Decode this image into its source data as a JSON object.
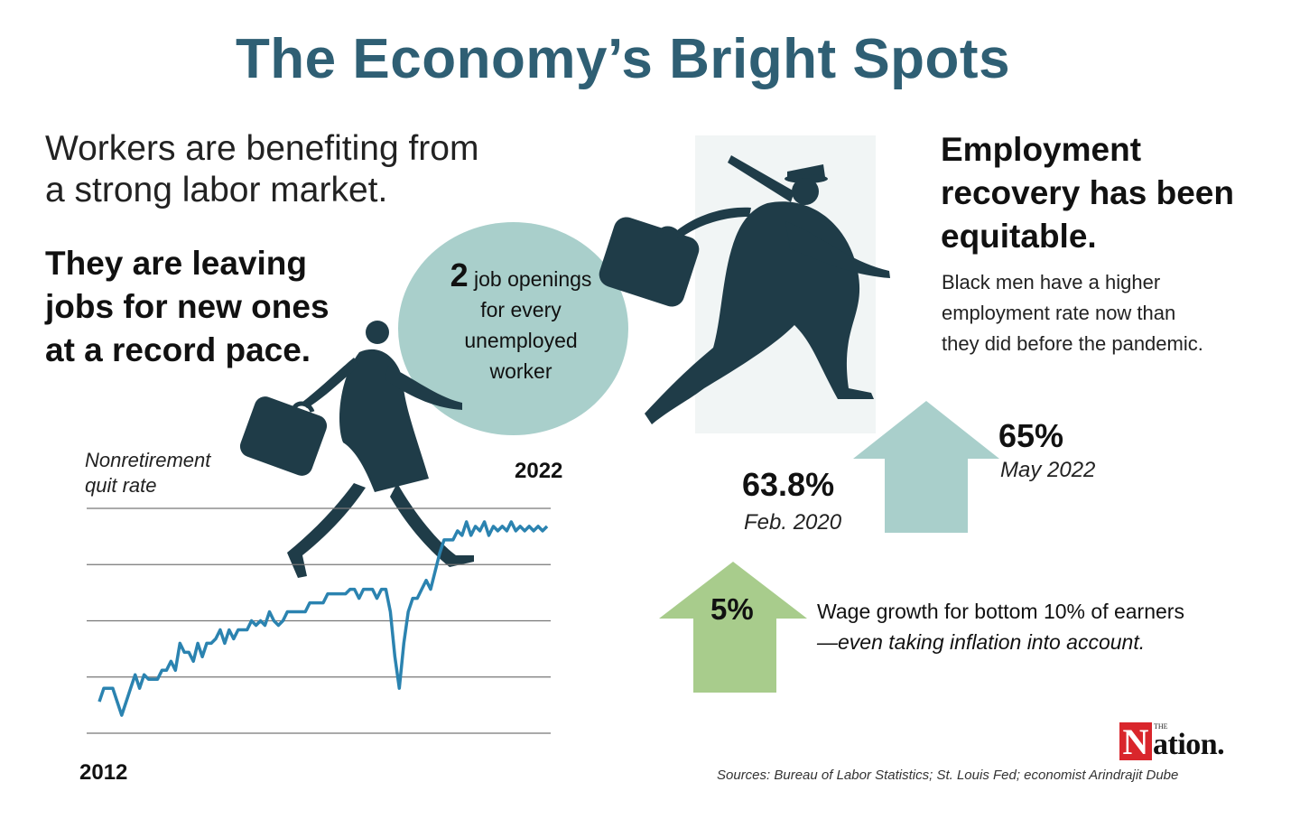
{
  "title": "The Economy’s Bright Spots",
  "subtitle_lines": [
    "Workers are benefiting from",
    "a strong labor market."
  ],
  "left_headline_lines": [
    "They are leaving",
    "jobs for new ones",
    "at a record pace."
  ],
  "bubble": {
    "number": "2",
    "first_line": "job openings",
    "lines": [
      "for every",
      "unemployed",
      "worker"
    ]
  },
  "right_headline_lines": [
    "Employment",
    "recovery has been",
    "equitable."
  ],
  "right_body_lines": [
    "Black men have a higher",
    "employment rate now than",
    "they did before the pandemic."
  ],
  "colors": {
    "title": "#2f5f74",
    "silhouette": "#1f3c48",
    "bubble": "#a9cfcb",
    "teal_arrow": "#a9cfcb",
    "green_arrow": "#a8cc8c",
    "line": "#2b83b0",
    "gridline": "#777777",
    "logo_red": "#d9262c"
  },
  "chart_data": {
    "type": "line",
    "title": "Nonretirement quit rate",
    "x_start_label": "2012",
    "x_end_label": "2022",
    "x": [
      0,
      1,
      2,
      3,
      4,
      5,
      6,
      7,
      8,
      9,
      10,
      11,
      12,
      13,
      14,
      15,
      16,
      17,
      18,
      19,
      20,
      21,
      22,
      23,
      24,
      25,
      26,
      27,
      28,
      29,
      30,
      31,
      32,
      33,
      34,
      35,
      36,
      37,
      38,
      39,
      40,
      41,
      42,
      43,
      44,
      45,
      46,
      47,
      48,
      49,
      50,
      51,
      52,
      53,
      54,
      55,
      56,
      57,
      58,
      59,
      60,
      61,
      62,
      63,
      64,
      65,
      66,
      67,
      68,
      69,
      70,
      71,
      72,
      73,
      74,
      75,
      76,
      77,
      78,
      79,
      80,
      81,
      82,
      83,
      84,
      85,
      86,
      87,
      88,
      89,
      90,
      91,
      92,
      93,
      94,
      95,
      96,
      97,
      98,
      99,
      100
    ],
    "values": [
      0.3,
      0.6,
      0.6,
      0.6,
      0.3,
      0.0,
      0.3,
      0.6,
      0.9,
      0.6,
      0.9,
      0.8,
      0.8,
      0.8,
      1.0,
      1.0,
      1.2,
      1.0,
      1.6,
      1.4,
      1.4,
      1.2,
      1.6,
      1.3,
      1.6,
      1.6,
      1.7,
      1.9,
      1.6,
      1.9,
      1.7,
      1.9,
      1.9,
      1.9,
      2.1,
      2.0,
      2.1,
      2.0,
      2.3,
      2.1,
      2.0,
      2.1,
      2.3,
      2.3,
      2.3,
      2.3,
      2.3,
      2.5,
      2.5,
      2.5,
      2.5,
      2.7,
      2.7,
      2.7,
      2.7,
      2.7,
      2.8,
      2.8,
      2.6,
      2.8,
      2.8,
      2.8,
      2.6,
      2.8,
      2.8,
      2.3,
      1.3,
      0.6,
      1.6,
      2.3,
      2.6,
      2.6,
      2.8,
      3.0,
      2.8,
      3.2,
      3.6,
      3.9,
      3.9,
      3.9,
      4.1,
      4.0,
      4.3,
      4.0,
      4.2,
      4.1,
      4.3,
      4.0,
      4.2,
      4.1,
      4.2,
      4.1,
      4.3,
      4.1,
      4.2,
      4.1,
      4.2,
      4.1,
      4.2,
      4.1,
      4.2
    ],
    "ylim": [
      -0.4,
      4.6
    ],
    "gridlines": 5,
    "grid": true
  },
  "employment": {
    "before_value": "63.8%",
    "before_label": "Feb. 2020",
    "after_value": "65%",
    "after_label": "May 2022"
  },
  "wage": {
    "value": "5%",
    "text_line1": "Wage growth for bottom 10% of earners",
    "text_line2": "—even taking inflation into account."
  },
  "sources": "Sources: Bureau of Labor Statistics; St. Louis Fed; economist Arindrajit Dube",
  "logo": {
    "n": "N",
    "the": "THE",
    "rest": "ation."
  }
}
